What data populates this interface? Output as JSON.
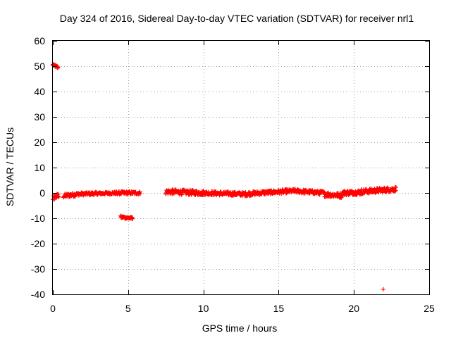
{
  "chart_data": {
    "type": "scatter",
    "title": "Day 324 of 2016, Sidereal Day-to-day VTEC variation (SDTVAR) for receiver nrl1",
    "xlabel": "GPS time / hours",
    "ylabel": "SDTVAR / TECUs",
    "xlim": [
      0,
      25
    ],
    "ylim": [
      -40,
      60
    ],
    "x_ticks": [
      0,
      5,
      10,
      15,
      20,
      25
    ],
    "y_ticks": [
      -40,
      -30,
      -20,
      -10,
      0,
      10,
      20,
      30,
      40,
      50,
      60
    ],
    "grid": true,
    "marker": "+",
    "color": "#ff0000",
    "segments": [
      {
        "x_start": 0.0,
        "x_end": 0.35,
        "y_start": 50.5,
        "y_end": 49.5,
        "spread": 0.5
      },
      {
        "x_start": 0.0,
        "x_end": 0.4,
        "y_start": -2.0,
        "y_end": -1.0,
        "spread": 1.0
      },
      {
        "x_start": 0.7,
        "x_end": 1.5,
        "y_start": -1.2,
        "y_end": -0.6,
        "spread": 0.8
      },
      {
        "x_start": 1.5,
        "x_end": 3.0,
        "y_start": -0.5,
        "y_end": -0.2,
        "spread": 0.6
      },
      {
        "x_start": 3.0,
        "x_end": 4.3,
        "y_start": -0.2,
        "y_end": 0.0,
        "spread": 0.5
      },
      {
        "x_start": 4.5,
        "x_end": 5.3,
        "y_start": -9.5,
        "y_end": -10.0,
        "spread": 0.5
      },
      {
        "x_start": 4.3,
        "x_end": 5.8,
        "y_start": 0.0,
        "y_end": 0.0,
        "spread": 0.6
      },
      {
        "x_start": 7.5,
        "x_end": 10.0,
        "y_start": 0.5,
        "y_end": 0.0,
        "spread": 1.0
      },
      {
        "x_start": 10.0,
        "x_end": 13.0,
        "y_start": 0.0,
        "y_end": -0.5,
        "spread": 0.8
      },
      {
        "x_start": 13.0,
        "x_end": 16.0,
        "y_start": -0.3,
        "y_end": 0.8,
        "spread": 0.8
      },
      {
        "x_start": 16.0,
        "x_end": 18.0,
        "y_start": 0.8,
        "y_end": 0.0,
        "spread": 0.8
      },
      {
        "x_start": 18.0,
        "x_end": 19.2,
        "y_start": -0.5,
        "y_end": -1.0,
        "spread": 1.0
      },
      {
        "x_start": 19.2,
        "x_end": 20.5,
        "y_start": 0.0,
        "y_end": 0.3,
        "spread": 1.0
      },
      {
        "x_start": 20.5,
        "x_end": 22.8,
        "y_start": 0.5,
        "y_end": 1.5,
        "spread": 1.0
      }
    ],
    "outliers": [
      {
        "x": 21.95,
        "y": -38.0
      }
    ]
  }
}
